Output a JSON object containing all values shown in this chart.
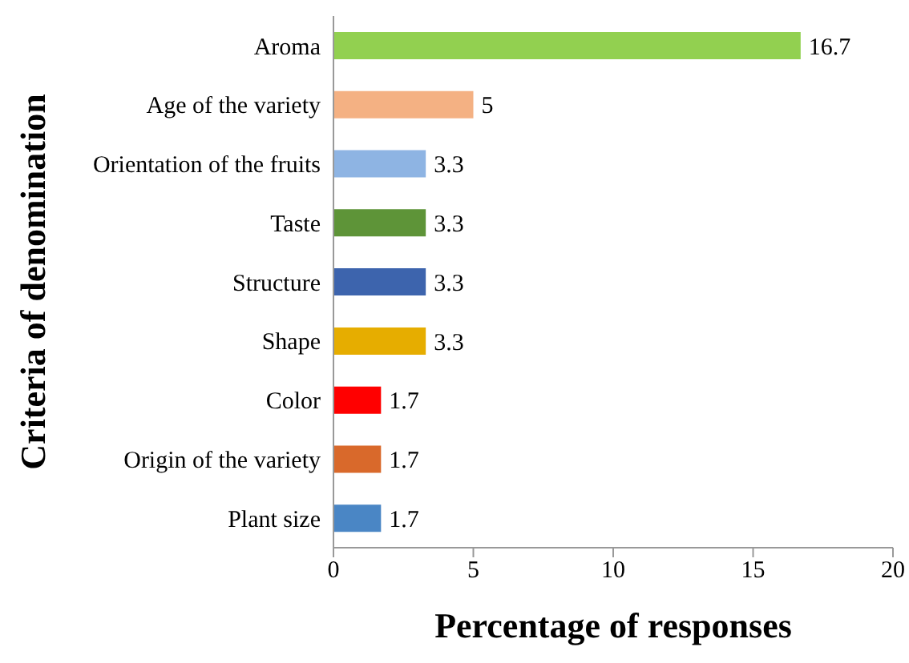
{
  "chart_data": {
    "type": "bar",
    "orientation": "horizontal",
    "xlabel": "Percentage of responses",
    "ylabel": "Criteria of denomination",
    "categories": [
      "Aroma",
      "Age of the variety",
      "Orientation of the fruits",
      "Taste",
      "Structure",
      "Shape",
      "Color",
      "Origin of the variety",
      "Plant size"
    ],
    "values": [
      16.7,
      5,
      3.3,
      3.3,
      3.3,
      3.3,
      1.7,
      1.7,
      1.7
    ],
    "colors": [
      "#92d050",
      "#f4b183",
      "#8eb4e3",
      "#5e9438",
      "#3d64ad",
      "#e6ad00",
      "#ff0000",
      "#d9692b",
      "#4a86c5"
    ],
    "xlim": [
      0,
      20
    ],
    "xticks": [
      0,
      5,
      10,
      15,
      20
    ],
    "grid": false,
    "legend": false,
    "data_labels": true
  }
}
